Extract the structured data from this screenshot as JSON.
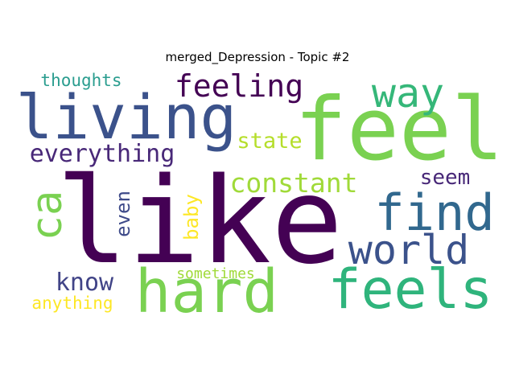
{
  "title": "merged_Depression - Topic #2",
  "words": [
    {
      "text": "like",
      "color": "#440154"
    },
    {
      "text": "feel",
      "color": "#7ad151"
    },
    {
      "text": "living",
      "color": "#3b528b"
    },
    {
      "text": "hard",
      "color": "#7ad151"
    },
    {
      "text": "feels",
      "color": "#2fb47c"
    },
    {
      "text": "find",
      "color": "#31688e"
    },
    {
      "text": "world",
      "color": "#3b528b"
    },
    {
      "text": "way",
      "color": "#35b779"
    },
    {
      "text": "feeling",
      "color": "#440154"
    },
    {
      "text": "ca",
      "color": "#7ad151"
    },
    {
      "text": "everything",
      "color": "#482878"
    },
    {
      "text": "constant",
      "color": "#a0da39"
    },
    {
      "text": "state",
      "color": "#b5de2b"
    },
    {
      "text": "seem",
      "color": "#482878"
    },
    {
      "text": "know",
      "color": "#414487"
    },
    {
      "text": "even",
      "color": "#3e4a89"
    },
    {
      "text": "baby",
      "color": "#fde725"
    },
    {
      "text": "thoughts",
      "color": "#2a9d8f"
    },
    {
      "text": "sometimes",
      "color": "#a0da39"
    },
    {
      "text": "anything",
      "color": "#fde725"
    }
  ]
}
